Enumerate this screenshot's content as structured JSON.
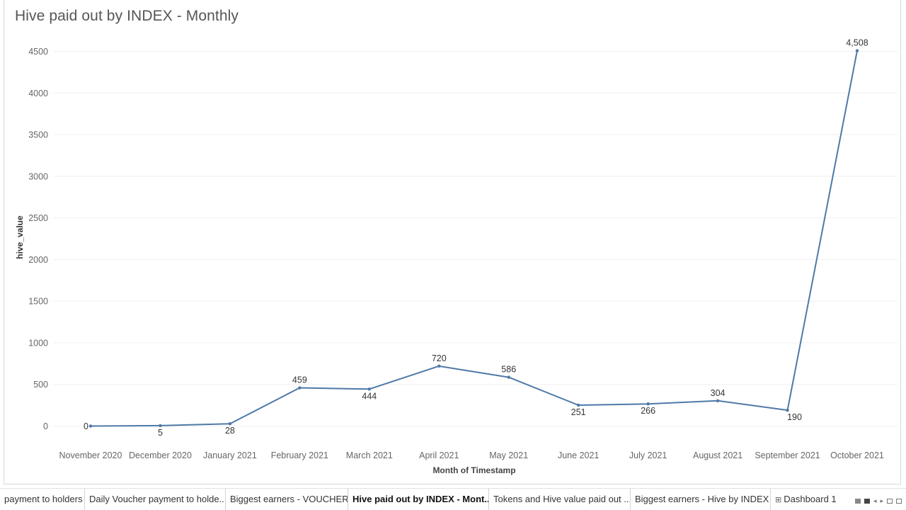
{
  "sheet": {
    "title": "Hive paid out by INDEX - Monthly"
  },
  "colors": {
    "line": "#4e79a7",
    "grid": "#efefef",
    "axis_text": "#666666",
    "label_text": "#333333"
  },
  "chart_data": {
    "type": "line",
    "title": "Hive paid out by INDEX - Monthly",
    "xlabel": "Month of Timestamp",
    "ylabel": "hive_value",
    "ylim": [
      -300,
      4700
    ],
    "yticks": [
      0,
      500,
      1000,
      1500,
      2000,
      2500,
      3000,
      3500,
      4000,
      4500
    ],
    "grid": true,
    "categories": [
      "November 2020",
      "December 2020",
      "January 2021",
      "February 2021",
      "March 2021",
      "April 2021",
      "May 2021",
      "June 2021",
      "July 2021",
      "August 2021",
      "September 2021",
      "October 2021"
    ],
    "series": [
      {
        "name": "hive_value",
        "values": [
          0,
          5,
          28,
          459,
          444,
          720,
          586,
          251,
          266,
          304,
          190,
          4508
        ],
        "labels": [
          "0",
          "5",
          "28",
          "459",
          "444",
          "720",
          "586",
          "251",
          "266",
          "304",
          "190",
          "4,508"
        ],
        "label_side": [
          "left",
          "below",
          "below",
          "above",
          "below",
          "above",
          "above",
          "below",
          "below",
          "above",
          "below",
          "above"
        ]
      }
    ]
  },
  "tabs": [
    {
      "label": "payment to holders",
      "active": false
    },
    {
      "label": "Daily Voucher payment to holde...",
      "active": false
    },
    {
      "label": "Biggest earners - VOUCHER",
      "active": false
    },
    {
      "label": "Hive paid out by INDEX - Mont...",
      "active": true
    },
    {
      "label": "Tokens and Hive value paid out ...",
      "active": false
    },
    {
      "label": "Biggest earners - Hive by INDEX",
      "active": false
    },
    {
      "label": "Dashboard 1",
      "active": false,
      "icon": "dashboard-icon"
    }
  ]
}
